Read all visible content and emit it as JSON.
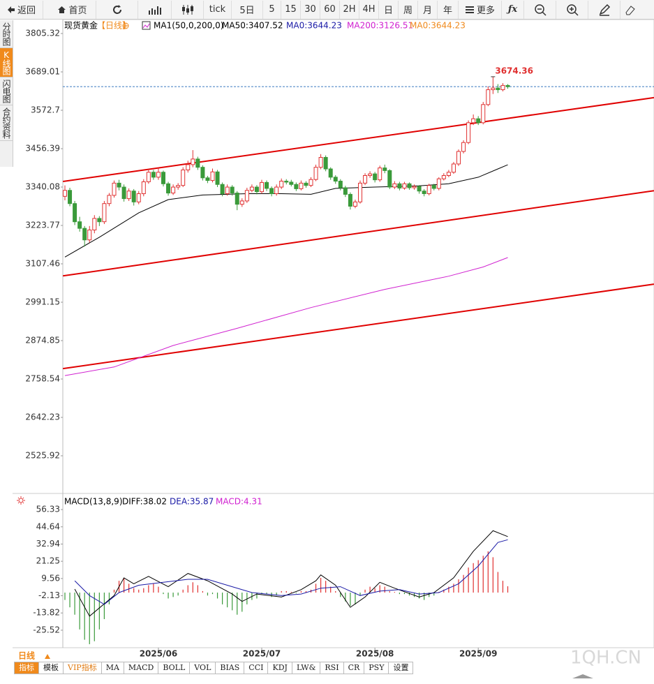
{
  "toolbar": {
    "back": "返回",
    "home": "首页",
    "periods": [
      "tick",
      "5日",
      "5",
      "15",
      "30",
      "60",
      "2H",
      "4H",
      "日",
      "周",
      "月",
      "年"
    ],
    "more": "更多"
  },
  "sidebar": [
    "分时图",
    "K线图",
    "闪电图",
    "合约资料"
  ],
  "chart_data": [
    {
      "type": "candlestick",
      "title": "现货黄金",
      "period": "【日线】",
      "legend": [
        {
          "text": "MA1(50,0,200,0)",
          "color": "#000000"
        },
        {
          "text": "MA50:3407.52",
          "color": "#000000"
        },
        {
          "text": "MA0:3644.23",
          "color": "#1a1aa6"
        },
        {
          "text": "MA200:3126.51",
          "color": "#d020d0"
        },
        {
          "text": "MA0:3644.23",
          "color": "#f08a1c"
        }
      ],
      "up_color": "#e03030",
      "down_color": "#3a9a3a",
      "ylim": [
        2416,
        3847.6
      ],
      "yticks": [
        3805.32,
        3689.01,
        3572.7,
        3456.39,
        3340.08,
        3223.77,
        3107.46,
        2991.15,
        2874.85,
        2758.54,
        2642.23,
        2525.92
      ],
      "x_labels": [
        {
          "index": 19,
          "label": "2025/06"
        },
        {
          "index": 40,
          "label": "2025/07"
        },
        {
          "index": 63,
          "label": "2025/08"
        },
        {
          "index": 84,
          "label": "2025/09"
        }
      ],
      "ohlc": [
        [
          3312,
          3345,
          3300,
          3330
        ],
        [
          3330,
          3338,
          3282,
          3290
        ],
        [
          3290,
          3298,
          3225,
          3235
        ],
        [
          3235,
          3250,
          3205,
          3215
        ],
        [
          3215,
          3222,
          3160,
          3180
        ],
        [
          3180,
          3222,
          3172,
          3210
        ],
        [
          3210,
          3255,
          3200,
          3245
        ],
        [
          3245,
          3252,
          3222,
          3235
        ],
        [
          3235,
          3298,
          3228,
          3290
        ],
        [
          3290,
          3322,
          3282,
          3315
        ],
        [
          3315,
          3360,
          3308,
          3352
        ],
        [
          3352,
          3362,
          3330,
          3340
        ],
        [
          3340,
          3348,
          3296,
          3305
        ],
        [
          3305,
          3336,
          3298,
          3328
        ],
        [
          3328,
          3334,
          3284,
          3295
        ],
        [
          3295,
          3328,
          3288,
          3320
        ],
        [
          3320,
          3364,
          3312,
          3356
        ],
        [
          3356,
          3394,
          3350,
          3385
        ],
        [
          3385,
          3392,
          3362,
          3370
        ],
        [
          3370,
          3398,
          3362,
          3385
        ],
        [
          3385,
          3390,
          3342,
          3350
        ],
        [
          3350,
          3356,
          3314,
          3322
        ],
        [
          3322,
          3348,
          3316,
          3340
        ],
        [
          3340,
          3352,
          3332,
          3345
        ],
        [
          3345,
          3400,
          3340,
          3392
        ],
        [
          3392,
          3420,
          3384,
          3408
        ],
        [
          3408,
          3452,
          3400,
          3425
        ],
        [
          3425,
          3432,
          3392,
          3400
        ],
        [
          3400,
          3406,
          3360,
          3368
        ],
        [
          3368,
          3374,
          3352,
          3360
        ],
        [
          3360,
          3396,
          3354,
          3386
        ],
        [
          3386,
          3392,
          3340,
          3348
        ],
        [
          3348,
          3354,
          3312,
          3320
        ],
        [
          3320,
          3348,
          3314,
          3340
        ],
        [
          3340,
          3346,
          3314,
          3322
        ],
        [
          3322,
          3328,
          3270,
          3288
        ],
        [
          3288,
          3306,
          3280,
          3298
        ],
        [
          3298,
          3338,
          3292,
          3330
        ],
        [
          3330,
          3348,
          3324,
          3340
        ],
        [
          3340,
          3346,
          3318,
          3326
        ],
        [
          3326,
          3362,
          3320,
          3354
        ],
        [
          3354,
          3360,
          3328,
          3336
        ],
        [
          3336,
          3342,
          3312,
          3320
        ],
        [
          3320,
          3348,
          3314,
          3340
        ],
        [
          3340,
          3366,
          3334,
          3358
        ],
        [
          3358,
          3364,
          3348,
          3355
        ],
        [
          3355,
          3362,
          3342,
          3348
        ],
        [
          3348,
          3354,
          3328,
          3335
        ],
        [
          3335,
          3360,
          3330,
          3352
        ],
        [
          3352,
          3358,
          3338,
          3345
        ],
        [
          3345,
          3370,
          3340,
          3363
        ],
        [
          3363,
          3408,
          3358,
          3400
        ],
        [
          3400,
          3440,
          3394,
          3430
        ],
        [
          3430,
          3436,
          3388,
          3395
        ],
        [
          3395,
          3400,
          3362,
          3370
        ],
        [
          3370,
          3376,
          3350,
          3358
        ],
        [
          3358,
          3364,
          3330,
          3338
        ],
        [
          3338,
          3344,
          3310,
          3318
        ],
        [
          3318,
          3324,
          3272,
          3282
        ],
        [
          3282,
          3302,
          3276,
          3295
        ],
        [
          3295,
          3360,
          3290,
          3352
        ],
        [
          3352,
          3382,
          3346,
          3375
        ],
        [
          3375,
          3388,
          3368,
          3380
        ],
        [
          3380,
          3386,
          3354,
          3362
        ],
        [
          3362,
          3405,
          3356,
          3398
        ],
        [
          3398,
          3408,
          3382,
          3390
        ],
        [
          3390,
          3394,
          3334,
          3340
        ],
        [
          3340,
          3358,
          3334,
          3350
        ],
        [
          3350,
          3356,
          3330,
          3337
        ],
        [
          3337,
          3356,
          3332,
          3350
        ],
        [
          3350,
          3354,
          3332,
          3338
        ],
        [
          3338,
          3348,
          3332,
          3342
        ],
        [
          3342,
          3346,
          3320,
          3328
        ],
        [
          3328,
          3334,
          3312,
          3320
        ],
        [
          3320,
          3350,
          3315,
          3345
        ],
        [
          3345,
          3350,
          3330,
          3336
        ],
        [
          3336,
          3370,
          3330,
          3365
        ],
        [
          3365,
          3382,
          3360,
          3375
        ],
        [
          3375,
          3392,
          3370,
          3385
        ],
        [
          3385,
          3416,
          3380,
          3410
        ],
        [
          3410,
          3454,
          3404,
          3448
        ],
        [
          3448,
          3482,
          3442,
          3475
        ],
        [
          3475,
          3542,
          3470,
          3535
        ],
        [
          3535,
          3560,
          3528,
          3547
        ],
        [
          3547,
          3555,
          3528,
          3535
        ],
        [
          3535,
          3598,
          3530,
          3590
        ],
        [
          3590,
          3645,
          3585,
          3635
        ],
        [
          3635,
          3674.36,
          3622,
          3640
        ],
        [
          3640,
          3652,
          3625,
          3635
        ],
        [
          3635,
          3655,
          3630,
          3648
        ],
        [
          3648,
          3652,
          3638,
          3644.23
        ]
      ],
      "lines": [
        {
          "color": "#000000",
          "x": [
            0,
            7,
            15,
            21,
            28,
            37,
            44,
            50,
            55,
            63,
            72,
            78,
            84,
            88,
            90
          ],
          "values": [
            3128,
            3188,
            3262,
            3302,
            3316,
            3320,
            3320,
            3318,
            3336,
            3340,
            3344,
            3350,
            3370,
            3395,
            3407.52
          ]
        },
        {
          "color": "#d020d0",
          "x": [
            0,
            10,
            22,
            35,
            50,
            65,
            78,
            85,
            90
          ],
          "values": [
            2769,
            2795,
            2860,
            2912,
            2975,
            3030,
            3070,
            3098,
            3126.51
          ]
        }
      ],
      "trendlines": [
        {
          "color": "#e00000",
          "x": [
            -0.4,
            119.7
          ],
          "values": [
            3357,
            3611
          ]
        },
        {
          "color": "#e00000",
          "x": [
            -0.4,
            119.7
          ],
          "values": [
            3071,
            3329
          ]
        },
        {
          "color": "#e00000",
          "x": [
            -0.4,
            119.7
          ],
          "values": [
            2790,
            3046
          ]
        }
      ],
      "high_label_index": 87
    },
    {
      "type": "macd",
      "legend": [
        {
          "text": "MACD(13,8,9)",
          "color": "#000000"
        },
        {
          "text": "DIFF:38.02",
          "color": "#000000"
        },
        {
          "text": "DEA:35.87",
          "color": "#1a1aa6"
        },
        {
          "text": "MACD:4.31",
          "color": "#d020d0"
        }
      ],
      "ylim": [
        -37.4,
        64.9
      ],
      "yticks": [
        56.33,
        44.64,
        32.94,
        21.25,
        9.56,
        -2.13,
        -13.82,
        -25.52
      ],
      "histogram": [
        -5,
        -10,
        -15,
        -25,
        -32,
        -35,
        -33,
        -25,
        -18,
        -8,
        2,
        8,
        10,
        6,
        3,
        2,
        3,
        5,
        6,
        4,
        -1,
        -4,
        -3,
        -2,
        2,
        5,
        7,
        5,
        1,
        -2,
        -1,
        -4,
        -8,
        -10,
        -12,
        -15,
        -13,
        -8,
        -5,
        -4,
        -1,
        -1,
        -3,
        -2,
        1,
        1,
        0.5,
        -0.5,
        1,
        1,
        2,
        6,
        10,
        8,
        4,
        1,
        -3,
        -6,
        -9,
        -8,
        -2,
        2,
        4,
        3,
        5,
        4,
        1,
        0.5,
        -1,
        -1,
        -2,
        -3,
        -4,
        -5,
        -3,
        -2,
        0.5,
        2,
        4,
        6,
        9,
        12,
        17,
        20,
        22,
        25,
        28,
        24,
        14,
        8,
        4.31
      ],
      "up_color": "#e03030",
      "down_color": "#3a9a3a",
      "series": [
        {
          "color": "#000000",
          "x": [
            2,
            5,
            10,
            12,
            14,
            17,
            21,
            25,
            29,
            34,
            36,
            39,
            44,
            48,
            51,
            52,
            55,
            58,
            61,
            64,
            67,
            72,
            75,
            79,
            83,
            87,
            90
          ],
          "values": [
            2.4,
            -16,
            -2,
            10,
            6,
            11,
            4,
            13,
            8,
            -1,
            -6,
            -1,
            -3,
            2,
            8,
            12,
            5,
            -10,
            -3,
            7,
            3,
            -3,
            0,
            10,
            28,
            42,
            38.02
          ]
        },
        {
          "color": "#1a1aa6",
          "x": [
            2,
            5,
            8,
            11,
            15,
            20,
            25,
            29,
            34,
            38,
            44,
            48,
            52,
            56,
            60,
            64,
            68,
            72,
            76,
            80,
            84,
            88,
            90
          ],
          "values": [
            8,
            -2,
            -8,
            0,
            5,
            7,
            9,
            9,
            4,
            0,
            -2,
            -1,
            3,
            4,
            -2,
            1,
            2,
            -1,
            0,
            6,
            18,
            34,
            35.87
          ]
        }
      ]
    }
  ],
  "period_label": "日线",
  "tabs": [
    "指标",
    "模板",
    "VIP指标",
    "MA",
    "MACD",
    "BOLL",
    "VOL",
    "BIAS",
    "CCI",
    "KDJ",
    "LW&",
    "RSI",
    "CR",
    "PSY",
    "设置"
  ],
  "watermark": "1QH.CN"
}
